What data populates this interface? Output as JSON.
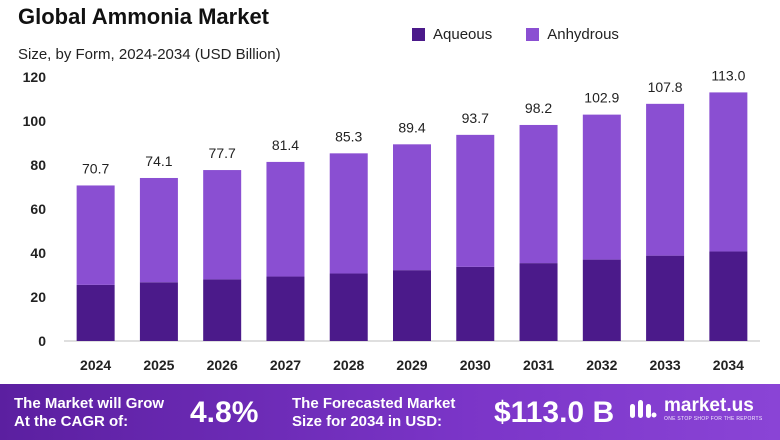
{
  "title": "Global Ammonia Market",
  "subtitle": "Size, by Form, 2024-2034 (USD Billion)",
  "colors": {
    "aqueous": "#4b1a8a",
    "anhydrous": "#8a4fd2"
  },
  "legend": [
    "Aqueous",
    "Anhydrous"
  ],
  "chart_data": {
    "type": "bar",
    "stacked": true,
    "categories": [
      "2024",
      "2025",
      "2026",
      "2027",
      "2028",
      "2029",
      "2030",
      "2031",
      "2032",
      "2033",
      "2034"
    ],
    "series": [
      {
        "name": "Aqueous",
        "values": [
          25.5,
          26.7,
          28.0,
          29.3,
          30.7,
          32.2,
          33.7,
          35.4,
          37.0,
          38.8,
          40.7
        ]
      },
      {
        "name": "Anhydrous",
        "values": [
          45.2,
          47.4,
          49.7,
          52.1,
          54.6,
          57.2,
          60.0,
          62.8,
          65.9,
          69.0,
          72.3
        ]
      }
    ],
    "totals": [
      70.7,
      74.1,
      77.7,
      81.4,
      85.3,
      89.4,
      93.7,
      98.2,
      102.9,
      107.8,
      113.0
    ],
    "total_labels": [
      "70.7",
      "74.1",
      "77.7",
      "81.4",
      "85.3",
      "89.4",
      "93.7",
      "98.2",
      "102.9",
      "107.8",
      "113.0"
    ],
    "y_ticks": [
      0,
      20,
      40,
      60,
      80,
      100,
      120
    ],
    "ylim": [
      0,
      120
    ],
    "grid": false
  },
  "footer": {
    "cagr_label_line1": "The Market will Grow",
    "cagr_label_line2": "At the CAGR of:",
    "cagr_value": "4.8%",
    "forecast_label_line1": "The Forecasted Market",
    "forecast_label_line2": "Size for 2034 in USD:",
    "forecast_value": "$113.0 B",
    "brand": "market.us",
    "brand_tagline": "ONE STOP SHOP FOR THE REPORTS",
    "brand_icon": "market-us-logo-icon"
  }
}
